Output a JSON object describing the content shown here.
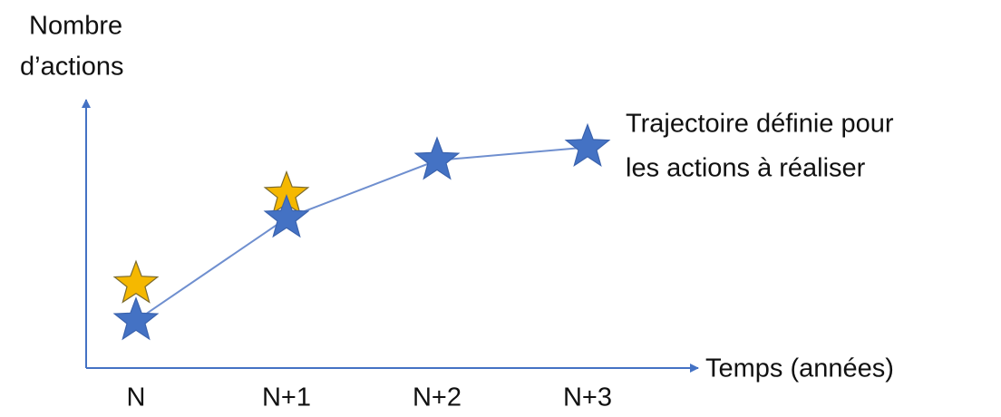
{
  "chart_data": {
    "type": "line",
    "ylabel": [
      "Nombre",
      "d’actions"
    ],
    "xlabel": "Temps (années)",
    "annotation": [
      "Trajectoire définie pour",
      "les actions à réaliser"
    ],
    "categories": [
      "N",
      "N+1",
      "N+2",
      "N+3"
    ],
    "ylim": [
      0,
      100
    ],
    "series": [
      {
        "color": "#4472c4",
        "values": [
          18,
          57,
          79,
          84
        ]
      },
      {
        "color": "#f5b800",
        "values": [
          32,
          66,
          null,
          null
        ]
      }
    ]
  }
}
